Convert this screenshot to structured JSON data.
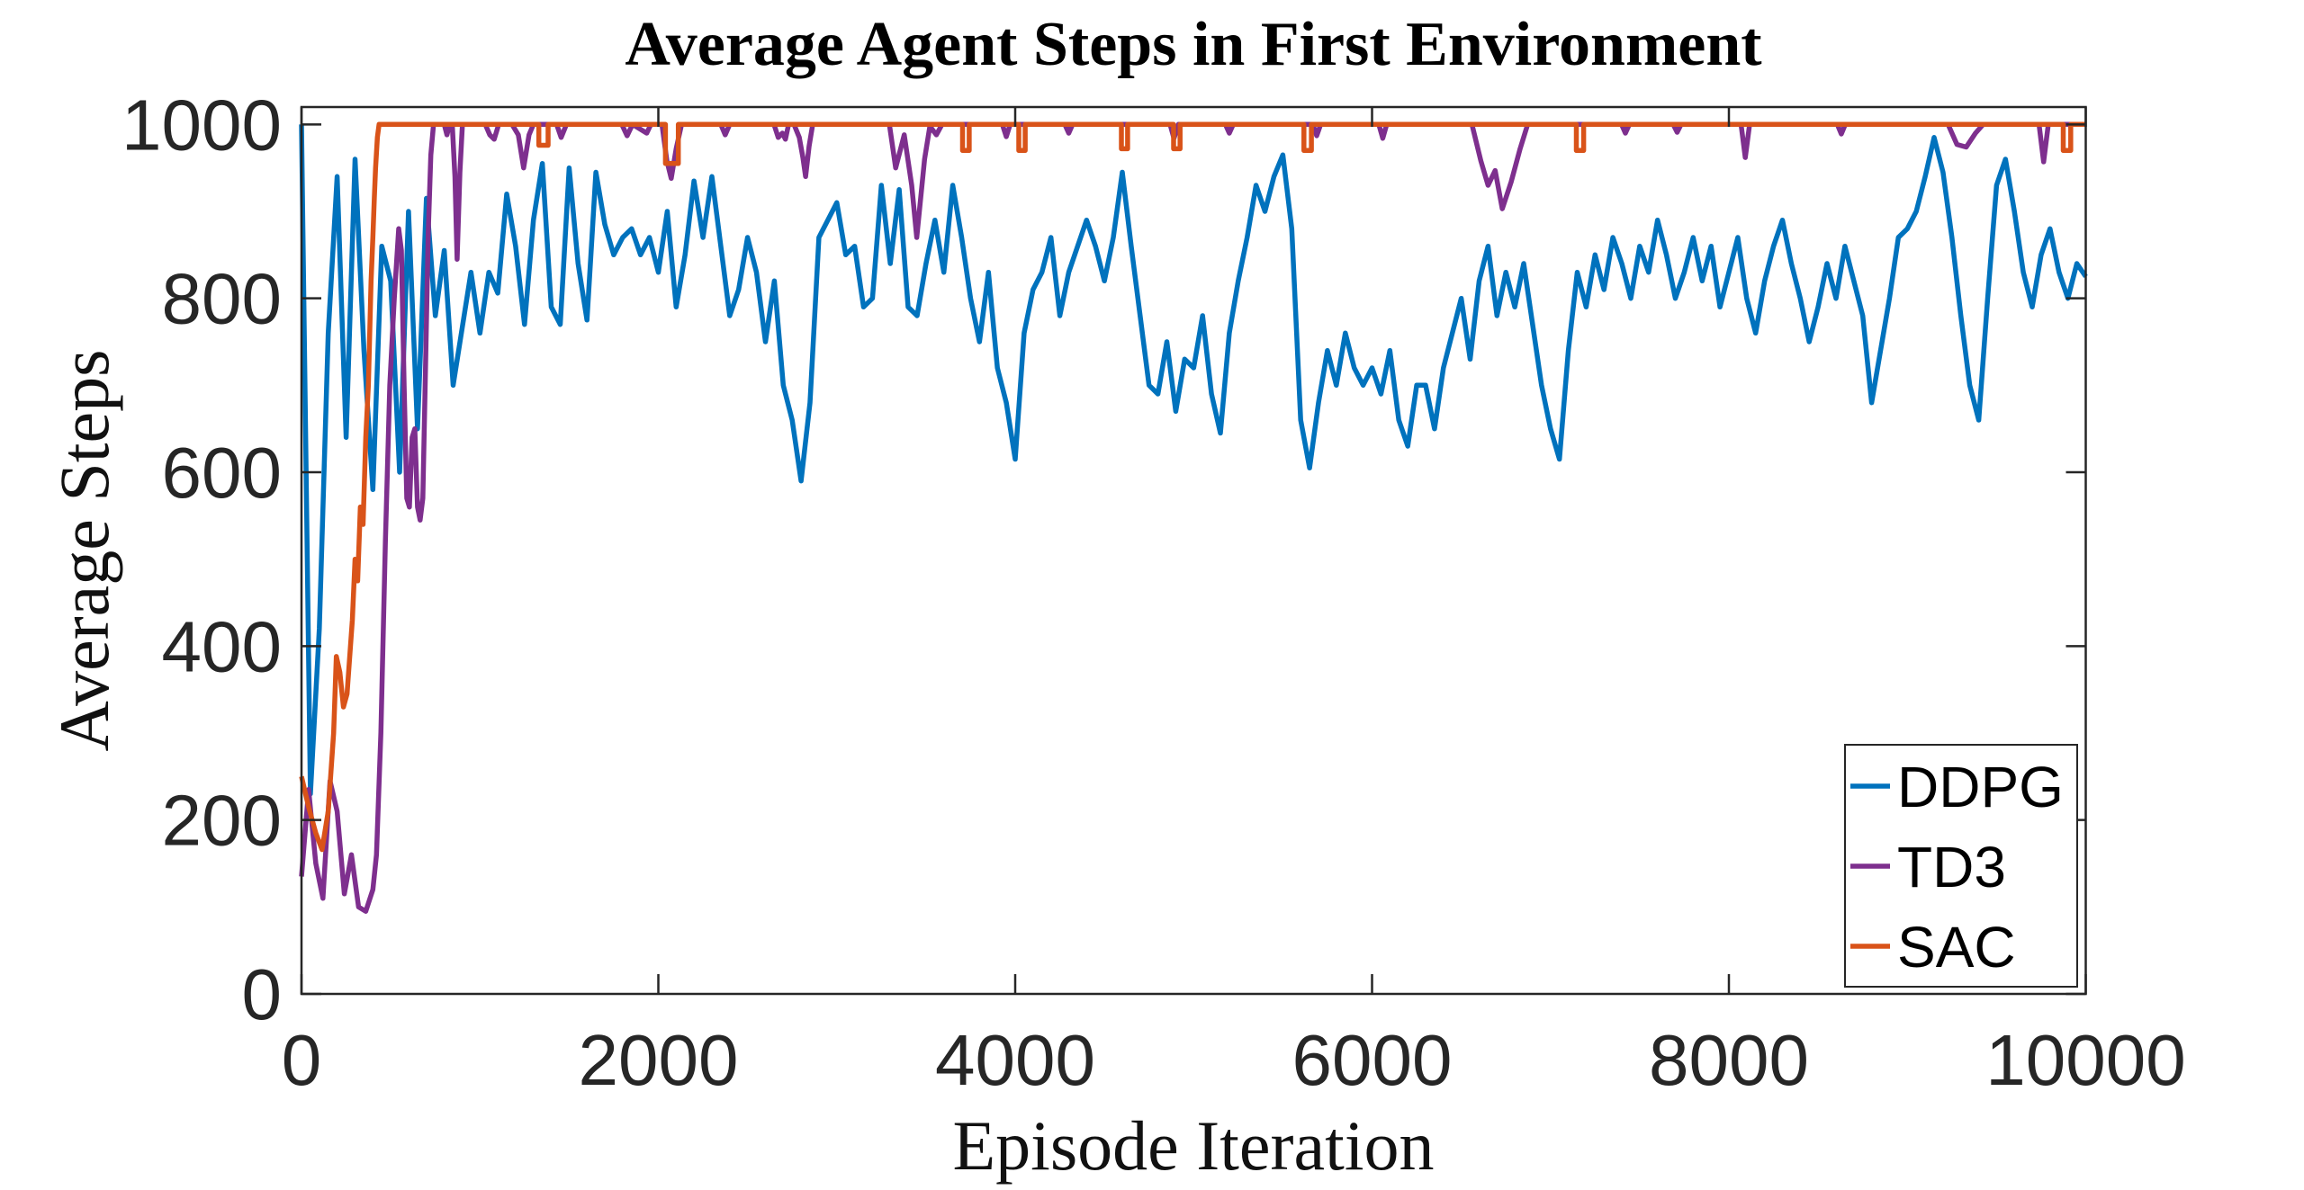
{
  "chart_data": {
    "type": "line",
    "title": "Average Agent Steps in First Environment",
    "xlabel": "Episode Iteration",
    "ylabel": "Average Steps",
    "xlim": [
      0,
      10000
    ],
    "ylim": [
      0,
      1020
    ],
    "xticks": [
      0,
      2000,
      4000,
      6000,
      8000,
      10000
    ],
    "yticks": [
      0,
      200,
      400,
      600,
      800,
      1000
    ],
    "grid": false,
    "legend_position": "lower-right-inside",
    "axis_color": "#262626",
    "background_color": "#ffffff",
    "series": [
      {
        "name": "DDPG",
        "color": "#0072BD",
        "line_width": 5.5,
        "x_start": 0,
        "x_step": 50,
        "values": [
          1000,
          230,
          420,
          760,
          940,
          640,
          960,
          740,
          580,
          860,
          820,
          600,
          900,
          650,
          915,
          780,
          855,
          700,
          765,
          830,
          760,
          830,
          806,
          920,
          860,
          770,
          890,
          955,
          790,
          770,
          950,
          840,
          775,
          945,
          885,
          850,
          870,
          880,
          850,
          870,
          830,
          900,
          790,
          850,
          935,
          870,
          940,
          860,
          780,
          810,
          870,
          830,
          750,
          820,
          700,
          660,
          590,
          680,
          870,
          890,
          910,
          850,
          860,
          790,
          800,
          930,
          840,
          925,
          790,
          780,
          840,
          890,
          830,
          930,
          870,
          800,
          750,
          830,
          720,
          680,
          615,
          760,
          810,
          830,
          870,
          780,
          830,
          860,
          890,
          860,
          820,
          870,
          945,
          860,
          780,
          700,
          690,
          750,
          670,
          730,
          720,
          780,
          690,
          645,
          760,
          820,
          870,
          930,
          900,
          940,
          965,
          880,
          660,
          605,
          680,
          740,
          700,
          760,
          720,
          700,
          720,
          690,
          740,
          660,
          630,
          700,
          700,
          650,
          720,
          760,
          800,
          730,
          820,
          860,
          780,
          830,
          790,
          840,
          770,
          700,
          650,
          615,
          740,
          830,
          790,
          850,
          810,
          870,
          840,
          800,
          860,
          830,
          890,
          850,
          800,
          830,
          870,
          820,
          860,
          790,
          830,
          870,
          800,
          760,
          820,
          860,
          890,
          840,
          800,
          750,
          790,
          840,
          800,
          860,
          820,
          780,
          680,
          740,
          800,
          870,
          880,
          900,
          940,
          985,
          945,
          870,
          780,
          700,
          660,
          800,
          930,
          960,
          900,
          830,
          790,
          850,
          880,
          830,
          800,
          840,
          825
        ]
      },
      {
        "name": "TD3",
        "color": "#7E2F8E",
        "line_width": 5.5,
        "points": [
          [
            0,
            135
          ],
          [
            40,
            235
          ],
          [
            80,
            150
          ],
          [
            120,
            110
          ],
          [
            160,
            245
          ],
          [
            200,
            210
          ],
          [
            240,
            115
          ],
          [
            280,
            160
          ],
          [
            320,
            100
          ],
          [
            360,
            95
          ],
          [
            400,
            120
          ],
          [
            420,
            160
          ],
          [
            445,
            300
          ],
          [
            470,
            520
          ],
          [
            495,
            700
          ],
          [
            520,
            800
          ],
          [
            545,
            880
          ],
          [
            560,
            855
          ],
          [
            575,
            700
          ],
          [
            590,
            570
          ],
          [
            605,
            560
          ],
          [
            620,
            640
          ],
          [
            635,
            650
          ],
          [
            650,
            560
          ],
          [
            665,
            545
          ],
          [
            680,
            570
          ],
          [
            695,
            720
          ],
          [
            710,
            875
          ],
          [
            725,
            965
          ],
          [
            740,
            1000
          ],
          [
            800,
            1000
          ],
          [
            815,
            988
          ],
          [
            830,
            1000
          ],
          [
            845,
            1000
          ],
          [
            860,
            940
          ],
          [
            872,
            845
          ],
          [
            888,
            945
          ],
          [
            902,
            1000
          ],
          [
            1030,
            1000
          ],
          [
            1055,
            988
          ],
          [
            1080,
            983
          ],
          [
            1105,
            1000
          ],
          [
            1180,
            1000
          ],
          [
            1215,
            988
          ],
          [
            1245,
            950
          ],
          [
            1275,
            988
          ],
          [
            1300,
            1000
          ],
          [
            1430,
            1000
          ],
          [
            1455,
            985
          ],
          [
            1485,
            1000
          ],
          [
            1795,
            1000
          ],
          [
            1825,
            987
          ],
          [
            1855,
            1000
          ],
          [
            1935,
            990
          ],
          [
            1958,
            1000
          ],
          [
            2020,
            1000
          ],
          [
            2048,
            958
          ],
          [
            2072,
            938
          ],
          [
            2100,
            972
          ],
          [
            2130,
            1000
          ],
          [
            2350,
            1000
          ],
          [
            2375,
            988
          ],
          [
            2400,
            1000
          ],
          [
            2648,
            1000
          ],
          [
            2672,
            985
          ],
          [
            2695,
            990
          ],
          [
            2712,
            983
          ],
          [
            2730,
            1000
          ],
          [
            2760,
            1000
          ],
          [
            2790,
            985
          ],
          [
            2810,
            962
          ],
          [
            2825,
            940
          ],
          [
            2845,
            975
          ],
          [
            2865,
            1000
          ],
          [
            3295,
            1000
          ],
          [
            3330,
            950
          ],
          [
            3378,
            988
          ],
          [
            3420,
            930
          ],
          [
            3448,
            870
          ],
          [
            3492,
            960
          ],
          [
            3522,
            998
          ],
          [
            3558,
            988
          ],
          [
            3590,
            1000
          ],
          [
            3928,
            1000
          ],
          [
            3950,
            986
          ],
          [
            3972,
            1000
          ],
          [
            4278,
            1000
          ],
          [
            4300,
            990
          ],
          [
            4322,
            1000
          ],
          [
            4868,
            1000
          ],
          [
            4890,
            984
          ],
          [
            4915,
            1000
          ],
          [
            5178,
            1000
          ],
          [
            5200,
            990
          ],
          [
            5222,
            1000
          ],
          [
            5668,
            1000
          ],
          [
            5690,
            987
          ],
          [
            5712,
            1000
          ],
          [
            6038,
            1000
          ],
          [
            6060,
            984
          ],
          [
            6082,
            1000
          ],
          [
            6560,
            1000
          ],
          [
            6610,
            958
          ],
          [
            6650,
            930
          ],
          [
            6690,
            947
          ],
          [
            6730,
            903
          ],
          [
            6780,
            934
          ],
          [
            6830,
            972
          ],
          [
            6872,
            1000
          ],
          [
            7398,
            1000
          ],
          [
            7420,
            990
          ],
          [
            7442,
            1000
          ],
          [
            7688,
            1000
          ],
          [
            7710,
            991
          ],
          [
            7732,
            1000
          ],
          [
            8068,
            1000
          ],
          [
            8092,
            962
          ],
          [
            8116,
            1000
          ],
          [
            8608,
            1000
          ],
          [
            8630,
            989
          ],
          [
            8652,
            1000
          ],
          [
            9228,
            1000
          ],
          [
            9278,
            977
          ],
          [
            9330,
            974
          ],
          [
            9382,
            990
          ],
          [
            9425,
            1000
          ],
          [
            9738,
            1000
          ],
          [
            9764,
            957
          ],
          [
            9790,
            1000
          ],
          [
            10000,
            1000
          ]
        ]
      },
      {
        "name": "SAC",
        "color": "#D95319",
        "line_width": 5.5,
        "points": [
          [
            0,
            250
          ],
          [
            40,
            215
          ],
          [
            80,
            185
          ],
          [
            115,
            166
          ],
          [
            150,
            210
          ],
          [
            180,
            300
          ],
          [
            195,
            388
          ],
          [
            215,
            370
          ],
          [
            235,
            330
          ],
          [
            255,
            345
          ],
          [
            285,
            430
          ],
          [
            300,
            500
          ],
          [
            315,
            475
          ],
          [
            330,
            560
          ],
          [
            345,
            540
          ],
          [
            360,
            640
          ],
          [
            375,
            700
          ],
          [
            390,
            820
          ],
          [
            400,
            870
          ],
          [
            408,
            915
          ],
          [
            415,
            950
          ],
          [
            425,
            985
          ],
          [
            435,
            1000
          ],
          [
            1330,
            1000
          ],
          [
            1330,
            976
          ],
          [
            1382,
            976
          ],
          [
            1382,
            1000
          ],
          [
            2040,
            1000
          ],
          [
            2040,
            955
          ],
          [
            2112,
            955
          ],
          [
            2112,
            1000
          ],
          [
            3705,
            1000
          ],
          [
            3705,
            970
          ],
          [
            3742,
            970
          ],
          [
            3742,
            1000
          ],
          [
            4020,
            1000
          ],
          [
            4020,
            970
          ],
          [
            4056,
            970
          ],
          [
            4056,
            1000
          ],
          [
            4595,
            1000
          ],
          [
            4595,
            972
          ],
          [
            4630,
            972
          ],
          [
            4630,
            1000
          ],
          [
            4888,
            1000
          ],
          [
            4888,
            972
          ],
          [
            4924,
            972
          ],
          [
            4924,
            1000
          ],
          [
            5618,
            1000
          ],
          [
            5618,
            970
          ],
          [
            5660,
            970
          ],
          [
            5660,
            1000
          ],
          [
            7145,
            1000
          ],
          [
            7145,
            970
          ],
          [
            7186,
            970
          ],
          [
            7186,
            1000
          ],
          [
            9874,
            1000
          ],
          [
            9874,
            970
          ],
          [
            9916,
            970
          ],
          [
            9916,
            1000
          ],
          [
            10000,
            1000
          ]
        ]
      }
    ]
  }
}
